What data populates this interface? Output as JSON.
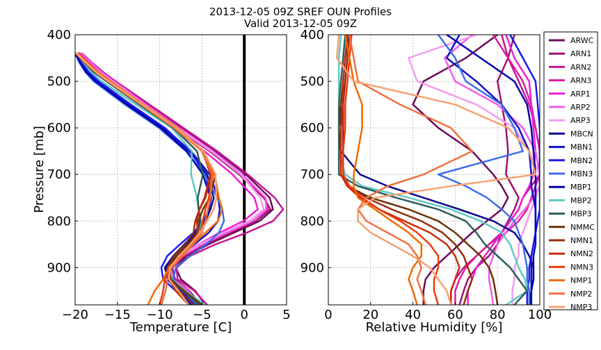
{
  "title_line1": "2013-12-05 09Z SREF OUN Profiles",
  "title_line2": "Valid 2013-12-05 09Z",
  "chart_data": [
    {
      "type": "line",
      "xlabel": "Temperature [C]",
      "ylabel": "Pressure [mb]",
      "xlim": [
        -20,
        5
      ],
      "ylim": [
        980,
        400
      ],
      "xticks": [
        "−20",
        "−15",
        "−10",
        "−5",
        "0",
        "5"
      ],
      "xtick_values": [
        -20,
        -15,
        -10,
        -5,
        0,
        5
      ],
      "yticks": [
        "400",
        "500",
        "600",
        "700",
        "800",
        "900"
      ],
      "ytick_values": [
        400,
        500,
        600,
        700,
        800,
        900
      ],
      "grid": true,
      "reference_line_x": 0,
      "pressure_levels": [
        440,
        460,
        480,
        500,
        550,
        600,
        650,
        700,
        750,
        775,
        800,
        825,
        850,
        875,
        900,
        925,
        950,
        980
      ],
      "series": [
        {
          "name": "ARWC",
          "color": "#6b0a5a",
          "values": [
            -19.5,
            -18.3,
            -17.0,
            -15.5,
            -11.5,
            -7.4,
            -3.4,
            0.2,
            3.0,
            3.4,
            1.8,
            -1.2,
            -4.2,
            -6.8,
            -8.1,
            -7.5,
            -5.8,
            -4.6
          ]
        },
        {
          "name": "ARN1",
          "color": "#a0106e",
          "values": [
            -20.0,
            -18.8,
            -17.5,
            -16.0,
            -12.1,
            -8.1,
            -4.1,
            -0.6,
            2.3,
            3.1,
            1.4,
            -1.6,
            -4.5,
            -7.0,
            -8.5,
            -8.2,
            -6.5,
            -5.1
          ]
        },
        {
          "name": "ARN2",
          "color": "#c81490",
          "values": [
            -19.2,
            -18.0,
            -16.7,
            -15.2,
            -11.2,
            -7.2,
            -3.2,
            0.4,
            3.6,
            4.6,
            3.4,
            0.3,
            -3.4,
            -6.4,
            -8.0,
            -7.9,
            -5.9,
            -4.4
          ]
        },
        {
          "name": "ARN3",
          "color": "#e01aa0",
          "values": [
            -19.8,
            -18.6,
            -17.3,
            -15.8,
            -12.0,
            -8.0,
            -4.0,
            -0.4,
            2.5,
            2.8,
            1.0,
            -2.0,
            -4.9,
            -7.4,
            -8.8,
            -8.6,
            -6.8,
            -5.4
          ]
        },
        {
          "name": "ARP1",
          "color": "#ee1cd6",
          "values": [
            -19.5,
            -18.4,
            -17.1,
            -15.7,
            -12.2,
            -8.4,
            -4.7,
            -1.4,
            1.2,
            1.6,
            -0.1,
            -2.9,
            -5.4,
            -7.7,
            -9.0,
            -8.8,
            -7.2,
            -5.9
          ]
        },
        {
          "name": "ARP2",
          "color": "#f25ce8",
          "values": [
            -19.3,
            -18.1,
            -16.9,
            -15.4,
            -11.6,
            -7.7,
            -3.7,
            -0.2,
            2.5,
            2.6,
            1.0,
            -2.0,
            -5.0,
            -7.3,
            -8.7,
            -8.4,
            -6.6,
            -5.5
          ]
        },
        {
          "name": "ARP3",
          "color": "#f59af0",
          "values": [
            -19.6,
            -18.5,
            -17.2,
            -15.6,
            -11.8,
            -7.9,
            -3.9,
            -0.4,
            1.9,
            2.3,
            0.6,
            -2.5,
            -5.3,
            -7.6,
            -9.1,
            -8.9,
            -7.0,
            -5.8
          ]
        },
        {
          "name": "MBCN",
          "color": "#0a0a8c",
          "values": [
            -20.0,
            -19.4,
            -18.6,
            -17.4,
            -13.6,
            -9.6,
            -6.5,
            -4.4,
            -3.6,
            -4.0,
            -4.6,
            -5.8,
            -7.1,
            -8.4,
            -9.4,
            -9.0,
            -7.6,
            -6.0
          ]
        },
        {
          "name": "MBN1",
          "color": "#1010c8",
          "values": [
            -20.0,
            -19.3,
            -18.5,
            -17.3,
            -13.5,
            -9.5,
            -6.3,
            -4.1,
            -3.1,
            -2.9,
            -3.1,
            -4.2,
            -5.9,
            -7.6,
            -9.0,
            -8.9,
            -7.4,
            -5.8
          ]
        },
        {
          "name": "MBN2",
          "color": "#1a1aee",
          "values": [
            -19.9,
            -19.2,
            -18.4,
            -17.2,
            -13.4,
            -9.4,
            -6.4,
            -4.6,
            -3.9,
            -4.2,
            -4.8,
            -6.0,
            -7.6,
            -9.1,
            -9.8,
            -9.6,
            -8.1,
            -6.3
          ]
        },
        {
          "name": "MBN3",
          "color": "#3a6ee8",
          "values": [
            -20.0,
            -19.5,
            -18.8,
            -17.8,
            -14.1,
            -10.1,
            -6.9,
            -4.7,
            -3.2,
            -2.6,
            -2.4,
            -3.0,
            -4.5,
            -6.4,
            -8.1,
            -8.4,
            -7.2,
            -5.6
          ]
        },
        {
          "name": "MBP1",
          "color": "#0000b0",
          "values": [
            -20.0,
            -19.4,
            -18.7,
            -17.6,
            -13.9,
            -9.9,
            -6.8,
            -4.9,
            -4.0,
            -4.2,
            -4.7,
            -5.6,
            -6.9,
            -8.2,
            -9.3,
            -9.1,
            -7.7,
            -6.1
          ]
        },
        {
          "name": "MBP2",
          "color": "#5fc8c4",
          "values": [
            -19.8,
            -19.0,
            -18.1,
            -16.9,
            -12.8,
            -8.6,
            -6.2,
            -6.3,
            -5.6,
            -5.4,
            -5.1,
            -5.3,
            -6.2,
            -7.5,
            -8.7,
            -8.6,
            -7.0,
            -4.6
          ]
        },
        {
          "name": "MBP3",
          "color": "#2f5c5c",
          "values": [
            -19.9,
            -18.9,
            -17.8,
            -16.3,
            -12.4,
            -8.4,
            -5.6,
            -4.9,
            -5.5,
            -5.4,
            -5.2,
            -5.5,
            -6.6,
            -8.2,
            -9.0,
            -8.8,
            -7.3,
            -5.3
          ]
        },
        {
          "name": "NMMC",
          "color": "#6b3208",
          "values": [
            -19.9,
            -18.8,
            -17.6,
            -16.1,
            -12.1,
            -8.1,
            -4.9,
            -3.4,
            -4.1,
            -4.9,
            -5.4,
            -5.6,
            -6.6,
            -8.0,
            -8.9,
            -8.7,
            -7.1,
            -5.0
          ]
        },
        {
          "name": "NMN1",
          "color": "#962c08",
          "values": [
            -19.7,
            -18.6,
            -17.4,
            -15.9,
            -12.0,
            -8.1,
            -5.0,
            -3.9,
            -4.6,
            -5.3,
            -5.8,
            -6.0,
            -7.0,
            -8.3,
            -9.1,
            -8.9,
            -7.7,
            -6.0
          ]
        },
        {
          "name": "NMN2",
          "color": "#c82a08",
          "values": [
            -19.8,
            -18.7,
            -17.5,
            -16.0,
            -12.0,
            -8.0,
            -4.9,
            -4.0,
            -4.7,
            -5.3,
            -5.6,
            -5.5,
            -6.3,
            -7.6,
            -8.7,
            -8.9,
            -8.1,
            -6.6
          ]
        },
        {
          "name": "NMN3",
          "color": "#ee3a0e",
          "values": [
            -19.6,
            -18.5,
            -17.3,
            -15.8,
            -11.9,
            -7.9,
            -4.8,
            -3.7,
            -4.2,
            -4.6,
            -4.9,
            -5.2,
            -6.2,
            -7.6,
            -8.8,
            -9.4,
            -9.6,
            -10.0
          ]
        },
        {
          "name": "NMP1",
          "color": "#f06a00",
          "values": [
            -19.7,
            -18.6,
            -17.4,
            -15.9,
            -11.9,
            -7.9,
            -4.8,
            -3.5,
            -3.0,
            -2.6,
            -3.1,
            -4.6,
            -6.1,
            -7.6,
            -8.9,
            -9.6,
            -10.6,
            -11.4
          ]
        },
        {
          "name": "NMP2",
          "color": "#f07040",
          "values": [
            -19.9,
            -18.8,
            -17.6,
            -16.1,
            -12.2,
            -8.3,
            -5.0,
            -3.8,
            -4.0,
            -4.3,
            -4.6,
            -5.0,
            -6.0,
            -7.3,
            -8.6,
            -9.1,
            -9.3,
            -9.8
          ]
        },
        {
          "name": "NMP3",
          "color": "#f8a070",
          "values": [
            -19.8,
            -18.7,
            -17.5,
            -16.0,
            -12.0,
            -8.0,
            -4.8,
            -3.4,
            -3.3,
            -3.6,
            -4.4,
            -5.2,
            -6.4,
            -7.7,
            -8.8,
            -8.9,
            -7.8,
            -6.6
          ]
        }
      ]
    },
    {
      "type": "line",
      "xlabel": "Relative Humidity [%]",
      "ylabel": "",
      "xlim": [
        0,
        100
      ],
      "ylim": [
        980,
        400
      ],
      "xticks": [
        "0",
        "20",
        "40",
        "60",
        "80",
        "100"
      ],
      "xtick_values": [
        0,
        20,
        40,
        60,
        80,
        100
      ],
      "yticks": [
        "400",
        "500",
        "600",
        "700",
        "800",
        "900"
      ],
      "ytick_values": [
        400,
        500,
        600,
        700,
        800,
        900
      ],
      "grid": true,
      "legend_position": "right-outside",
      "pressure_levels": [
        400,
        450,
        500,
        550,
        600,
        650,
        700,
        725,
        750,
        775,
        800,
        825,
        850,
        875,
        900,
        925,
        950,
        980
      ],
      "series": [
        {
          "name": "ARWC",
          "color": "#6b0a5a",
          "values": [
            80,
            65,
            45,
            40,
            52,
            68,
            78,
            82,
            85,
            82,
            75,
            68,
            62,
            56,
            50,
            46,
            45,
            45
          ]
        },
        {
          "name": "ARN1",
          "color": "#a0106e",
          "values": [
            88,
            85,
            80,
            82,
            84,
            85,
            84,
            87,
            90,
            88,
            85,
            82,
            80,
            76,
            70,
            66,
            64,
            62
          ]
        },
        {
          "name": "ARN2",
          "color": "#c81490",
          "values": [
            82,
            85,
            90,
            95,
            98,
            100,
            100,
            96,
            92,
            90,
            86,
            82,
            76,
            70,
            64,
            60,
            58,
            58
          ]
        },
        {
          "name": "ARN3",
          "color": "#e01aa0",
          "values": [
            78,
            85,
            92,
            96,
            98,
            100,
            100,
            98,
            96,
            94,
            90,
            84,
            76,
            70,
            65,
            62,
            60,
            60
          ]
        },
        {
          "name": "ARP1",
          "color": "#ee1cd6",
          "values": [
            84,
            88,
            95,
            96,
            97,
            98,
            97,
            95,
            92,
            90,
            86,
            82,
            78,
            74,
            70,
            68,
            66,
            66
          ]
        },
        {
          "name": "ARP2",
          "color": "#f25ce8",
          "values": [
            68,
            55,
            60,
            80,
            92,
            98,
            100,
            100,
            97,
            93,
            88,
            84,
            80,
            78,
            76,
            76,
            77,
            78
          ]
        },
        {
          "name": "ARP3",
          "color": "#f59af0",
          "values": [
            70,
            38,
            42,
            70,
            88,
            95,
            100,
            100,
            98,
            96,
            94,
            92,
            90,
            90,
            88,
            88,
            87,
            87
          ]
        },
        {
          "name": "MBCN",
          "color": "#0a0a8c",
          "values": [
            10,
            8,
            7,
            6,
            5,
            6,
            15,
            28,
            45,
            62,
            78,
            88,
            92,
            95,
            97,
            97,
            96,
            95
          ]
        },
        {
          "name": "MBN1",
          "color": "#1010c8",
          "values": [
            62,
            56,
            70,
            82,
            90,
            95,
            96,
            96,
            97,
            98,
            98,
            98,
            97,
            96,
            96,
            96,
            96,
            96
          ]
        },
        {
          "name": "MBN2",
          "color": "#1a1aee",
          "values": [
            86,
            92,
            98,
            99,
            100,
            100,
            100,
            100,
            100,
            100,
            99,
            98,
            97,
            96,
            95,
            95,
            94,
            94
          ]
        },
        {
          "name": "MBN3",
          "color": "#3a6ee8",
          "values": [
            52,
            60,
            65,
            82,
            88,
            92,
            52,
            65,
            75,
            82,
            88,
            90,
            92,
            93,
            94,
            94,
            95,
            95
          ]
        },
        {
          "name": "MBP1",
          "color": "#0000b0",
          "values": [
            56,
            72,
            88,
            94,
            96,
            97,
            98,
            98,
            98,
            98,
            98,
            98,
            98,
            97,
            97,
            97,
            96,
            96
          ]
        },
        {
          "name": "MBP2",
          "color": "#5fc8c4",
          "values": [
            6,
            5,
            5,
            5,
            5,
            5,
            8,
            16,
            38,
            58,
            72,
            82,
            86,
            88,
            90,
            93,
            94,
            84
          ]
        },
        {
          "name": "MBP3",
          "color": "#2f5c5c",
          "values": [
            8,
            7,
            6,
            5,
            5,
            5,
            5,
            14,
            32,
            52,
            65,
            70,
            74,
            80,
            86,
            90,
            94,
            88
          ]
        },
        {
          "name": "NMMC",
          "color": "#6b3208",
          "values": [
            9,
            8,
            7,
            6,
            6,
            6,
            6,
            9,
            20,
            38,
            52,
            60,
            66,
            72,
            76,
            78,
            79,
            80
          ]
        },
        {
          "name": "NMN1",
          "color": "#962c08",
          "values": [
            10,
            9,
            8,
            7,
            7,
            7,
            7,
            10,
            18,
            30,
            44,
            54,
            60,
            64,
            66,
            68,
            66,
            64
          ]
        },
        {
          "name": "NMN2",
          "color": "#c82a08",
          "values": [
            9,
            8,
            7,
            7,
            6,
            6,
            6,
            9,
            15,
            24,
            36,
            48,
            56,
            60,
            62,
            60,
            58,
            58
          ]
        },
        {
          "name": "NMN3",
          "color": "#ee3a0e",
          "values": [
            11,
            10,
            9,
            8,
            8,
            7,
            7,
            10,
            16,
            24,
            34,
            42,
            48,
            52,
            52,
            50,
            50,
            52
          ]
        },
        {
          "name": "NMP1",
          "color": "#f06a00",
          "values": [
            8,
            10,
            12,
            16,
            16,
            14,
            12,
            12,
            14,
            22,
            30,
            38,
            44,
            44,
            40,
            38,
            40,
            42
          ]
        },
        {
          "name": "NMP2",
          "color": "#f07040",
          "values": [
            10,
            12,
            14,
            34,
            58,
            68,
            45,
            28,
            18,
            14,
            18,
            28,
            38,
            42,
            44,
            42,
            44,
            46
          ]
        },
        {
          "name": "NMP3",
          "color": "#f8a070",
          "values": [
            5,
            4,
            12,
            60,
            85,
            95,
            98,
            58,
            22,
            14,
            14,
            20,
            30,
            40,
            48,
            52,
            56,
            58
          ]
        }
      ]
    }
  ]
}
